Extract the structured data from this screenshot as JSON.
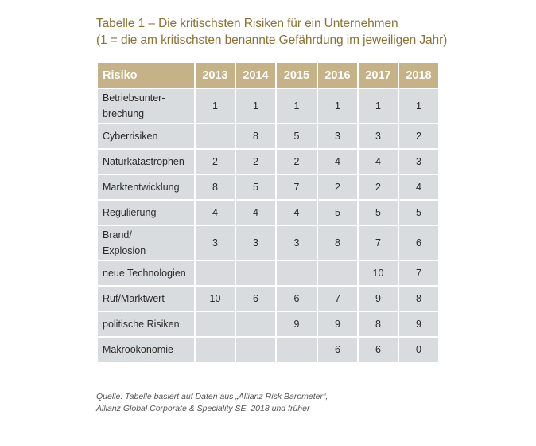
{
  "title": {
    "line1": "Tabelle 1 – Die kritischsten Risiken für ein Unternehmen",
    "line2": "(1 = die am kritischsten benannte Gefährdung im jeweiligen Jahr)"
  },
  "table": {
    "headers": [
      "Risiko",
      "2013",
      "2014",
      "2015",
      "2016",
      "2017",
      "2018"
    ],
    "rows": [
      {
        "risk_l1": "Betriebsunter-",
        "risk_l2": "brechung",
        "values": [
          "1",
          "1",
          "1",
          "1",
          "1",
          "1"
        ]
      },
      {
        "risk_l1": "Cyberrisiken",
        "risk_l2": "",
        "values": [
          "",
          "8",
          "5",
          "3",
          "3",
          "2"
        ]
      },
      {
        "risk_l1": "Naturkatastrophen",
        "risk_l2": "",
        "values": [
          "2",
          "2",
          "2",
          "4",
          "4",
          "3"
        ]
      },
      {
        "risk_l1": "Marktentwicklung",
        "risk_l2": "",
        "values": [
          "8",
          "5",
          "7",
          "2",
          "2",
          "4"
        ]
      },
      {
        "risk_l1": "Regulierung",
        "risk_l2": "",
        "values": [
          "4",
          "4",
          "4",
          "5",
          "5",
          "5"
        ]
      },
      {
        "risk_l1": "Brand/",
        "risk_l2": "Explosion",
        "values": [
          "3",
          "3",
          "3",
          "8",
          "7",
          "6"
        ]
      },
      {
        "risk_l1": "neue Technologien",
        "risk_l2": "",
        "values": [
          "",
          "",
          "",
          "",
          "10",
          "7"
        ]
      },
      {
        "risk_l1": "Ruf/Marktwert",
        "risk_l2": "",
        "values": [
          "10",
          "6",
          "6",
          "7",
          "9",
          "8"
        ]
      },
      {
        "risk_l1": "politische Risiken",
        "risk_l2": "",
        "values": [
          "",
          "",
          "9",
          "9",
          "8",
          "9"
        ]
      },
      {
        "risk_l1": "Makroökonomie",
        "risk_l2": "",
        "values": [
          "",
          "",
          "",
          "6",
          "6",
          "0"
        ]
      }
    ]
  },
  "source": {
    "line1": "Quelle: Tabelle basiert auf Daten aus „Allianz Risk Barometer“,",
    "line2": "Allianz Global Corporate & Speciality SE, 2018 und früher"
  },
  "colors": {
    "header_bg": "#c6b287",
    "cell_bg": "#d9dcde",
    "title": "#8a7232"
  }
}
